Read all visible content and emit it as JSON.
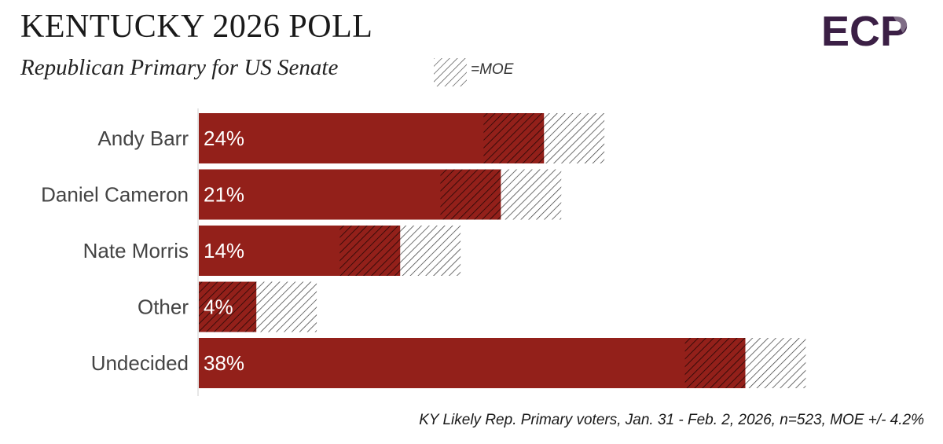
{
  "header": {
    "title": "KENTUCKY 2026 POLL",
    "subtitle": "Republican Primary for US Senate",
    "moe_legend_label": "=MOE",
    "logo_text": "ECP"
  },
  "footer": {
    "note": "KY Likely Rep. Primary voters, Jan. 31 - Feb. 2, 2026, n=523, MOE +/- 4.2%"
  },
  "colors": {
    "bar": "#93201a",
    "moe_overlay": "#000000",
    "logo": "#3b1f45"
  },
  "chart_data": {
    "type": "bar",
    "orientation": "horizontal",
    "categories": [
      "Andy Barr",
      "Daniel Cameron",
      "Nate Morris",
      "Other",
      "Undecided"
    ],
    "values": [
      24,
      21,
      14,
      4,
      38
    ],
    "value_labels": [
      "24%",
      "21%",
      "14%",
      "4%",
      "38%"
    ],
    "moe": 4.2,
    "unit": "%",
    "xlim": [
      0,
      43
    ],
    "grid": false,
    "legend": "top-center"
  }
}
